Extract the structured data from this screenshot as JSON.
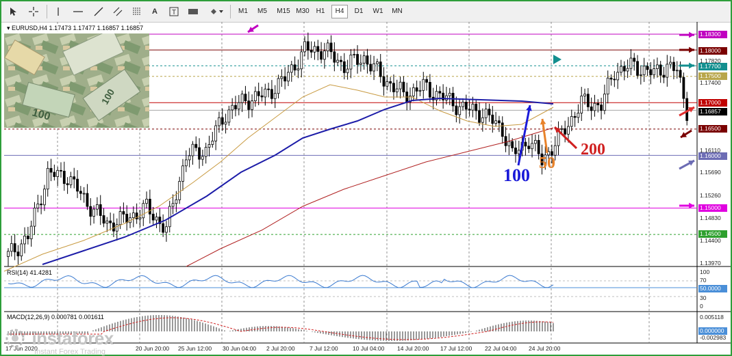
{
  "toolbar": {
    "timeframes": [
      "M1",
      "M5",
      "M15",
      "M30",
      "H1",
      "H4",
      "D1",
      "W1",
      "MN"
    ],
    "active_timeframe": "H4",
    "tools": [
      "cursor-icon",
      "crosshair-icon",
      "vertical-line-icon",
      "horizontal-line-icon",
      "trendline-icon",
      "equidistant-channel-icon",
      "fibonacci-icon",
      "text-icon",
      "text-label-icon",
      "rectangle-icon",
      "shapes-menu-icon"
    ]
  },
  "chart": {
    "symbol_header": "EURUSD,H4  1.17473 1.17477 1.16857 1.16857",
    "price_axis": [
      "1.18300",
      "1.18000",
      "1.17820",
      "1.17700",
      "1.17500",
      "1.17400",
      "1.17000",
      "1.16857",
      "1.16500",
      "1.16110",
      "1.16000",
      "1.15690",
      "1.15260",
      "1.15000",
      "1.14830",
      "1.14500",
      "1.14400",
      "1.13970"
    ],
    "level_tags": [
      {
        "price": "1.18300",
        "color": "#c000c0"
      },
      {
        "price": "1.18000",
        "color": "#7a0000"
      },
      {
        "price": "1.17700",
        "color": "#138f8f"
      },
      {
        "price": "1.17500",
        "color": "#b8a64a"
      },
      {
        "price": "1.17000",
        "color": "#c00000"
      },
      {
        "price": "1.16857",
        "color": "#000000"
      },
      {
        "price": "1.16500",
        "color": "#7a0000"
      },
      {
        "price": "1.16000",
        "color": "#6c6cb4"
      },
      {
        "price": "1.15000",
        "color": "#e000e0"
      },
      {
        "price": "1.14500",
        "color": "#2ea02e"
      }
    ],
    "ma_labels": {
      "ma100": "100",
      "ma50": "50",
      "ma200": "200"
    },
    "date_axis": [
      "17 Jun 2020",
      "20 Jun 20:00",
      "25 Jun 12:00",
      "30 Jun 04:00",
      "2 Jul 20:00",
      "7 Jul 12:00",
      "10 Jul 04:00",
      "14 Jul 20:00",
      "17 Jul 12:00",
      "22 Jul 04:00",
      "24 Jul 20:00"
    ]
  },
  "rsi": {
    "label": "RSI(14) 41.4281",
    "axis": [
      "100",
      "70",
      "30",
      "0"
    ],
    "level_tag": "50.0000"
  },
  "macd": {
    "label": "MACD(12,26,9) 0.000781 0.001611",
    "axis": [
      "0.005118",
      "-0.002983"
    ],
    "level_tag": "0.000000"
  },
  "watermark": {
    "brand": "instaforex",
    "tagline": "Instant Forex Trading"
  }
}
